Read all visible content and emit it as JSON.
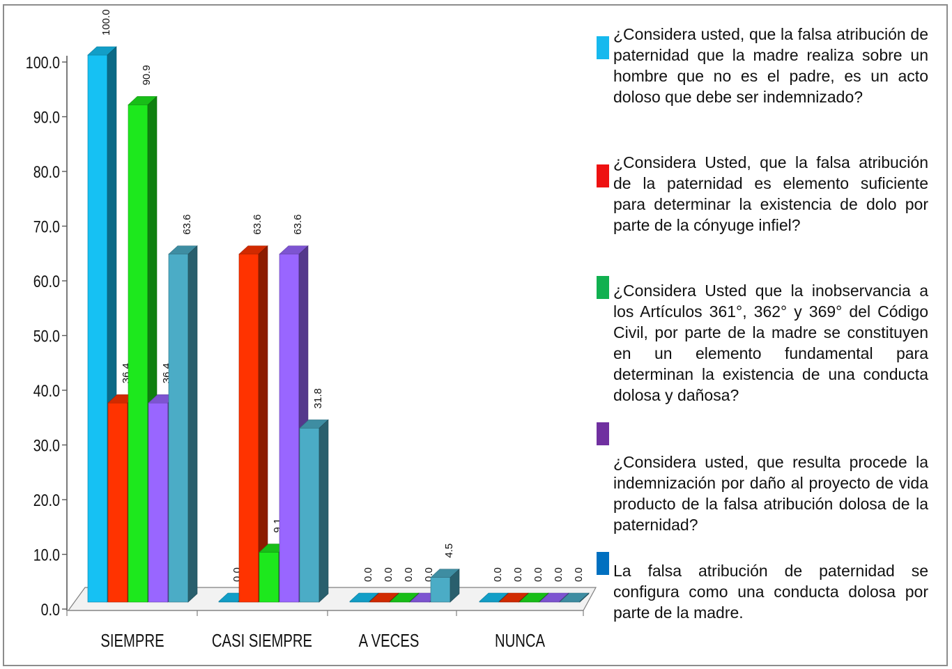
{
  "chart_data": {
    "type": "bar",
    "categories": [
      "SIEMPRE",
      "CASI SIEMPRE",
      "A VECES",
      "NUNCA"
    ],
    "ylim": [
      0,
      100
    ],
    "yticks": [
      "0.0",
      "10.0",
      "20.0",
      "30.0",
      "40.0",
      "50.0",
      "60.0",
      "70.0",
      "80.0",
      "90.0",
      "100.0"
    ],
    "grid": false,
    "legend_position": "right",
    "series": [
      {
        "name": "¿Considera usted, que la falsa atribución de paternidad que la madre realiza sobre un hombre que no es el padre, es un acto doloso que debe ser indemnizado?",
        "color": "#16c1f3",
        "values": [
          100.0,
          0.0,
          0.0,
          0.0
        ],
        "labels": [
          "100.0",
          "0.0",
          "0.0",
          "0.0"
        ]
      },
      {
        "name": "¿Considera Usted, que la falsa atribución de la paternidad es elemento suficiente para determinar la existencia de dolo por parte de la cónyuge infiel?",
        "color": "#ff3300",
        "values": [
          36.4,
          63.6,
          0.0,
          0.0
        ],
        "labels": [
          "36.4",
          "63.6",
          "0.0",
          "0.0"
        ]
      },
      {
        "name": "¿Considera Usted que la inobservancia a los Artículos 361°, 362° y 369° del Código Civil, por parte de la madre se constituyen en un elemento fundamental para determinan la existencia de una conducta dolosa y dañosa?",
        "color": "#1de81d",
        "values": [
          90.9,
          9.1,
          0.0,
          0.0
        ],
        "labels": [
          "90.9",
          "9.1",
          "0.0",
          "0.0"
        ]
      },
      {
        "name": "¿Considera usted, que resulta procede la indemnización por daño al proyecto de vida producto de la falsa atribución dolosa de la paternidad?",
        "color": "#9966ff",
        "values": [
          36.4,
          63.6,
          0.0,
          0.0
        ],
        "labels": [
          "36.4",
          "63.6",
          "0.0",
          "0.0"
        ]
      },
      {
        "name": "La falsa atribución de paternidad se configura como una conducta dolosa por parte de la madre.",
        "color": "#4bacc6",
        "values": [
          63.6,
          31.8,
          4.5,
          0.0
        ],
        "labels": [
          "63.6",
          "31.8",
          "4.5",
          "0.0"
        ]
      }
    ]
  },
  "legend": {
    "swatch_colors": [
      "#16b9ee",
      "#ee1111",
      "#11b050",
      "#7030a0",
      "#0070c0"
    ]
  }
}
